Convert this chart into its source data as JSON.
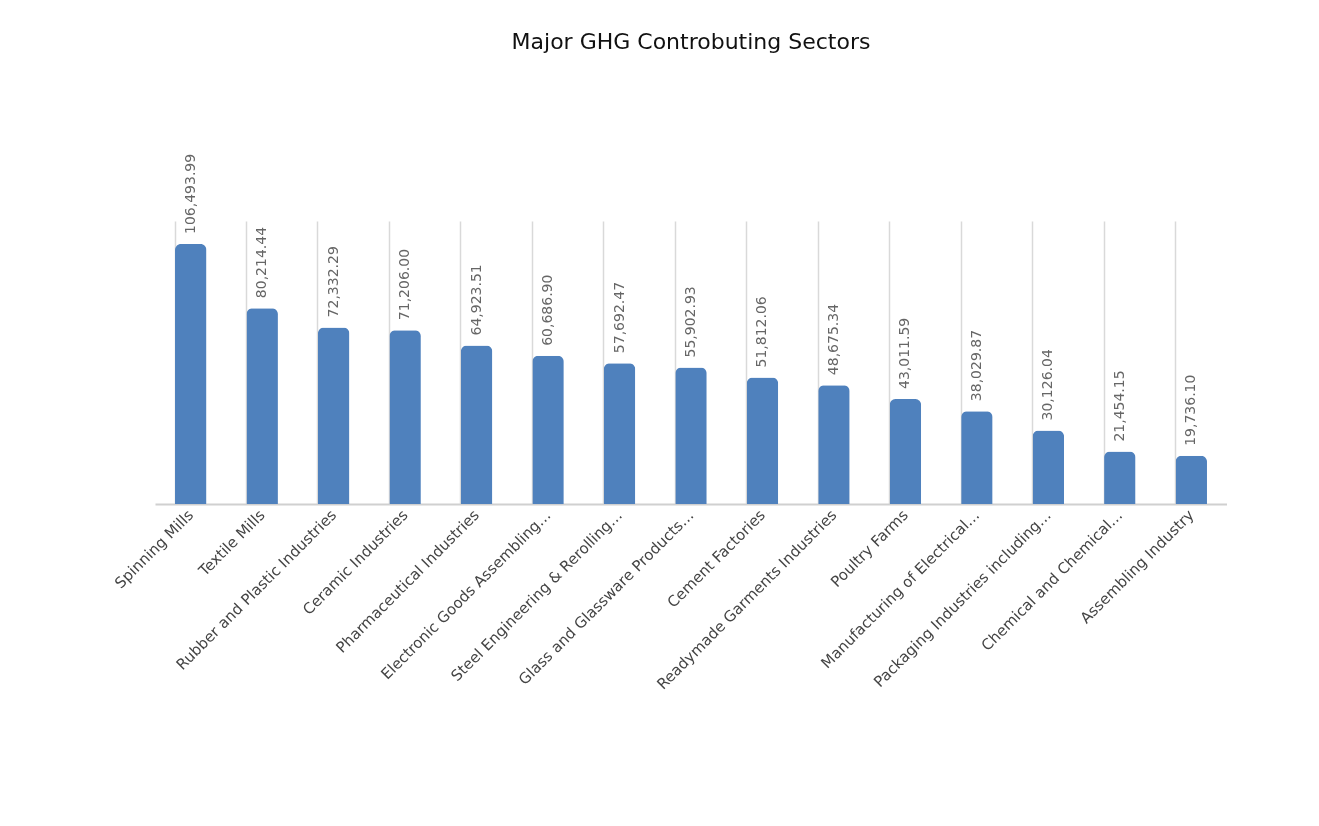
{
  "chart_data": {
    "type": "bar",
    "title": "Major GHG Controbuting Sectors",
    "categories": [
      "Spinning Mills",
      "Textile Mills",
      "Rubber and Plastic Industries",
      "Ceramic Industries",
      "Pharmaceutical Industries",
      "Electronic Goods Assembling…",
      "Steel Engineering &  Rerolling…",
      "Glass and Glassware Products…",
      "Cement Factories",
      "Readymade Garments Industries",
      "Poultry Farms",
      "Manufacturing of Electrical…",
      "Packaging Industries including…",
      "Chemical and Chemical…",
      "Assembling Industry"
    ],
    "values": [
      106493.99,
      80214.44,
      72332.29,
      71206.0,
      64923.51,
      60686.9,
      57692.47,
      55902.93,
      51812.06,
      48675.34,
      43011.59,
      38029.87,
      30126.04,
      21454.15,
      19736.1
    ],
    "value_labels": [
      "106,493.99",
      "80,214.44",
      "72,332.29",
      "71,206.00",
      "64,923.51",
      "60,686.90",
      "57,692.47",
      "55,902.93",
      "51,812.06",
      "48,675.34",
      "43,011.59",
      "38,029.87",
      "30,126.04",
      "21,454.15",
      "19,736.10"
    ],
    "color": "#4f81bd",
    "grid": "x"
  }
}
